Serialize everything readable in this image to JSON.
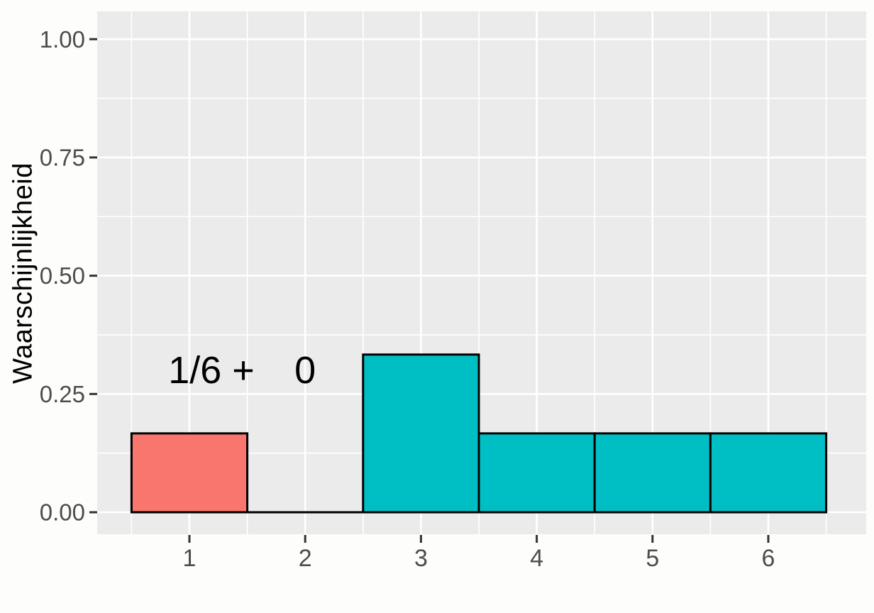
{
  "chart_data": {
    "type": "bar",
    "title": "",
    "xlabel": "",
    "ylabel": "Waarschijnlijkheid",
    "x": [
      1,
      2,
      3,
      4,
      5,
      6
    ],
    "values": [
      0.1667,
      0,
      0.3333,
      0.1667,
      0.1667,
      0.1667
    ],
    "bar_width": 1.0,
    "bar_colors": [
      "#F8766D",
      "none",
      "#00BFC4",
      "#00BFC4",
      "#00BFC4",
      "#00BFC4"
    ],
    "bar_outline_color": "#000000",
    "x_ticks": [
      "1",
      "2",
      "3",
      "4",
      "5",
      "6"
    ],
    "y_ticks": [
      "0.00",
      "0.25",
      "0.50",
      "0.75",
      "1.00"
    ],
    "y_tick_values": [
      0,
      0.25,
      0.5,
      0.75,
      1.0
    ],
    "y_minor_values": [
      0.125,
      0.375,
      0.625,
      0.875
    ],
    "x_minor_values": [
      0.5,
      1.5,
      2.5,
      3.5,
      4.5,
      5.5,
      6.5
    ],
    "xlim": [
      0.2,
      6.85
    ],
    "ylim": [
      -0.046,
      1.058
    ],
    "legend": "none",
    "grid": {
      "panel_bg": "#EBEBEB",
      "major_color": "#FFFFFF",
      "minor_color": "#FFFFFF"
    },
    "tick_label_color": "#4D4D4D",
    "tick_mark_color": "#333333",
    "annotations": [
      {
        "text": "1/6 +",
        "x": 1.19,
        "y": 0.3
      },
      {
        "text": "0",
        "x": 2.0,
        "y": 0.3
      }
    ]
  }
}
